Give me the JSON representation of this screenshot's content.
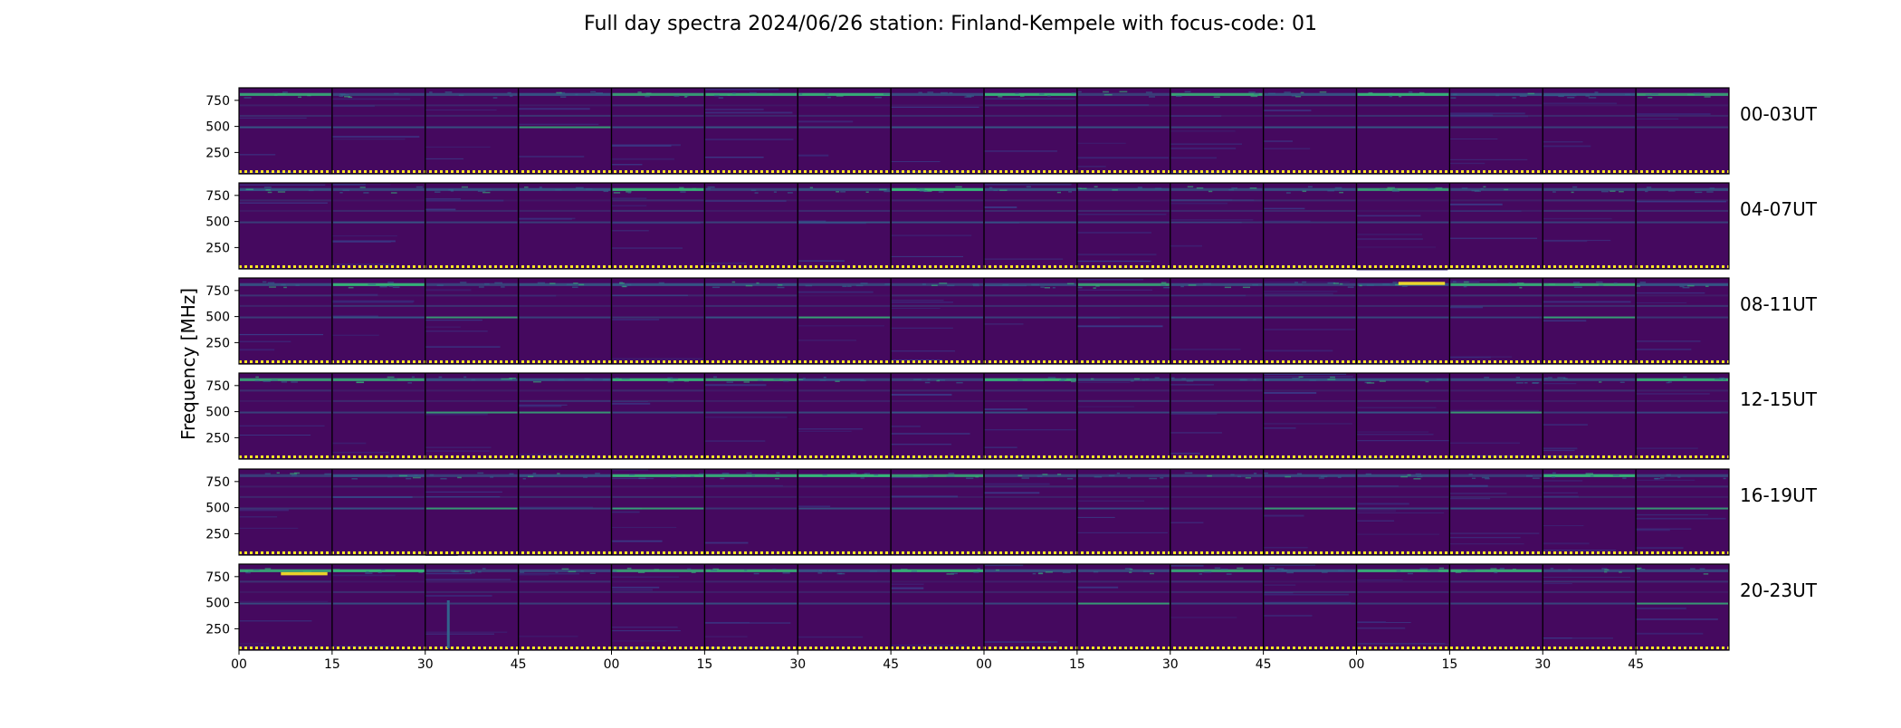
{
  "chart_data": {
    "type": "heatmap",
    "title": "Full day spectra 2024/06/26 station: Finland-Kempele with focus-code: 01",
    "ylabel": "Frequency [MHz]",
    "xlabel": "",
    "colormap": "viridis",
    "colors": {
      "background": "#45095f",
      "low": "#440154",
      "mid": "#31688e",
      "high": "#35b779",
      "peak": "#fde725",
      "frame": "#000000"
    },
    "y_ticks": [
      750,
      500,
      250
    ],
    "ylim": [
      45,
      870
    ],
    "x_ticks": [
      "00",
      "15",
      "30",
      "45",
      "00",
      "15",
      "30",
      "45",
      "00",
      "15",
      "30",
      "45",
      "00",
      "15",
      "30",
      "45"
    ],
    "segments_per_row": 16,
    "segment_minutes": 15,
    "bright_bands_mhz": [
      810,
      490,
      600,
      700
    ],
    "rows": [
      {
        "label": "00-03UT",
        "hours": [
          0,
          1,
          2,
          3
        ]
      },
      {
        "label": "04-07UT",
        "hours": [
          4,
          5,
          6,
          7
        ]
      },
      {
        "label": "08-11UT",
        "hours": [
          8,
          9,
          10,
          11
        ]
      },
      {
        "label": "12-15UT",
        "hours": [
          12,
          13,
          14,
          15
        ]
      },
      {
        "label": "16-19UT",
        "hours": [
          16,
          17,
          18,
          19
        ]
      },
      {
        "label": "20-23UT",
        "hours": [
          20,
          21,
          22,
          23
        ]
      }
    ],
    "events": [
      {
        "row": "20-23UT",
        "segment": 0,
        "freq_mhz": 780,
        "note": "bright narrow band"
      },
      {
        "row": "20-23UT",
        "segment": 2,
        "freq_mhz": 250,
        "note": "vertical burst"
      },
      {
        "row": "08-11UT",
        "segment": 12,
        "freq_mhz": 820,
        "note": "bright narrow band"
      }
    ]
  }
}
